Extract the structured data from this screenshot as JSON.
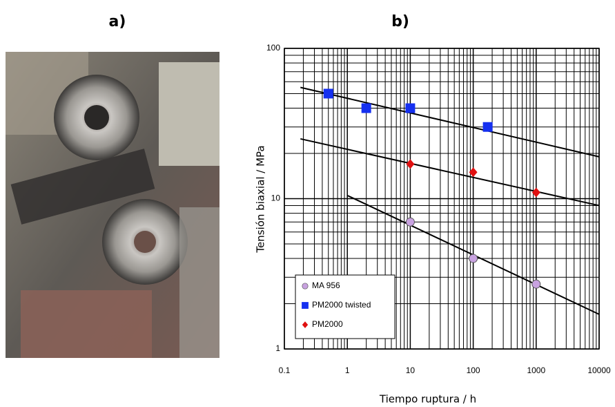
{
  "panel_labels": [
    "a)",
    "b)"
  ],
  "chart_data": {
    "type": "scatter",
    "xlabel": "Tiempo ruptura / h",
    "ylabel": "Tensión biaxial / MPa",
    "xscale": "log",
    "yscale": "log",
    "grid": true,
    "legend": "lower left",
    "xlim": [
      0.1,
      10000
    ],
    "ylim": [
      1,
      100
    ],
    "xticks": [
      0.1,
      1,
      10,
      100,
      1000,
      10000
    ],
    "yticks": [
      1,
      10,
      100
    ],
    "series": [
      {
        "name": "MA 956",
        "color": "#c8a2e0",
        "marker": "circle",
        "x": [
          10,
          100,
          1000
        ],
        "values": [
          7,
          4,
          2.7
        ]
      },
      {
        "name": "PM2000 twisted",
        "color": "#1530f0",
        "marker": "square",
        "x": [
          0.5,
          2,
          10,
          170
        ],
        "values": [
          50,
          40,
          40,
          30
        ]
      },
      {
        "name": "PM2000",
        "color": "#e01010",
        "marker": "diamond",
        "x": [
          10,
          100,
          1000
        ],
        "values": [
          17,
          15,
          11
        ]
      }
    ],
    "trendlines": [
      {
        "x": [
          0.18,
          10000
        ],
        "values": [
          55,
          19
        ]
      },
      {
        "x": [
          0.18,
          10000
        ],
        "values": [
          25,
          9
        ]
      },
      {
        "x": [
          1,
          10000
        ],
        "values": [
          10.5,
          1.7
        ]
      }
    ]
  }
}
